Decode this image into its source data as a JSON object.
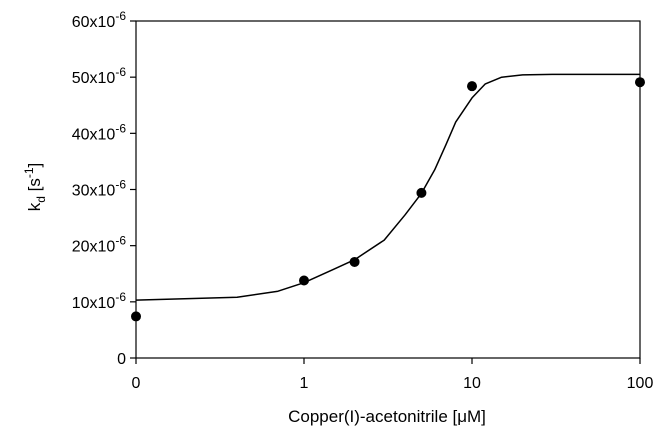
{
  "chart_data": {
    "type": "scatter",
    "title": "",
    "xlabel": "Copper(I)-acetonitrile [μM]",
    "ylabel": {
      "base": "k",
      "sub": "d",
      "unit_open": " [s",
      "unit_sup": "-1",
      "unit_close": "]"
    },
    "x_scale": "log, with 0 shown at the left end of the axis",
    "x_ticks": [
      {
        "value": 0,
        "label": "0"
      },
      {
        "value": 1,
        "label": "1"
      },
      {
        "value": 10,
        "label": "10"
      },
      {
        "value": 100,
        "label": "100"
      }
    ],
    "y_ticks": [
      {
        "value": 0,
        "label": "0",
        "exp": ""
      },
      {
        "value": 1e-05,
        "label": "10x10",
        "exp": "-6"
      },
      {
        "value": 2e-05,
        "label": "20x10",
        "exp": "-6"
      },
      {
        "value": 3e-05,
        "label": "30x10",
        "exp": "-6"
      },
      {
        "value": 4e-05,
        "label": "40x10",
        "exp": "-6"
      },
      {
        "value": 5e-05,
        "label": "50x10",
        "exp": "-6"
      },
      {
        "value": 6e-05,
        "label": "60x10",
        "exp": "-6"
      }
    ],
    "ylim": [
      0,
      6e-05
    ],
    "grid": false,
    "legend": "none",
    "series": [
      {
        "kind": "points",
        "marker": "filled-circle",
        "color": "#000000",
        "points": [
          {
            "x": 0,
            "y": 7.4e-06
          },
          {
            "x": 1,
            "y": 1.38e-05
          },
          {
            "x": 2,
            "y": 1.71e-05
          },
          {
            "x": 5,
            "y": 2.94e-05
          },
          {
            "x": 10,
            "y": 4.84e-05
          },
          {
            "x": 100,
            "y": 4.91e-05
          }
        ]
      },
      {
        "kind": "fit-curve",
        "color": "#000000",
        "points": [
          {
            "x": 0,
            "y": 1.03e-05
          },
          {
            "x": 0.4,
            "y": 1.08e-05
          },
          {
            "x": 0.7,
            "y": 1.19e-05
          },
          {
            "x": 1,
            "y": 1.34e-05
          },
          {
            "x": 1.5,
            "y": 1.58e-05
          },
          {
            "x": 2,
            "y": 1.75e-05
          },
          {
            "x": 3,
            "y": 2.1e-05
          },
          {
            "x": 4,
            "y": 2.55e-05
          },
          {
            "x": 5,
            "y": 2.93e-05
          },
          {
            "x": 6,
            "y": 3.35e-05
          },
          {
            "x": 7,
            "y": 3.8e-05
          },
          {
            "x": 8,
            "y": 4.2e-05
          },
          {
            "x": 10,
            "y": 4.63e-05
          },
          {
            "x": 12,
            "y": 4.88e-05
          },
          {
            "x": 15,
            "y": 5e-05
          },
          {
            "x": 20,
            "y": 5.04e-05
          },
          {
            "x": 30,
            "y": 5.05e-05
          },
          {
            "x": 100,
            "y": 5.05e-05
          }
        ]
      }
    ]
  }
}
